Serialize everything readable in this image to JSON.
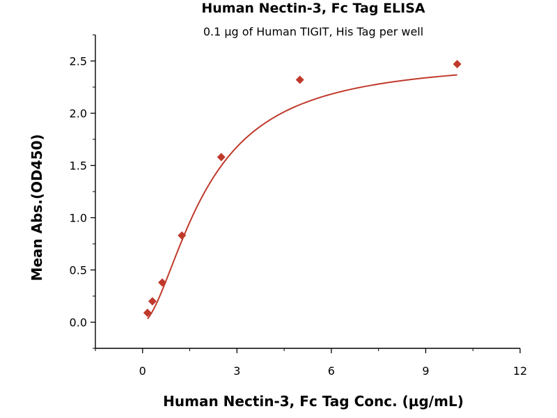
{
  "chart_data": {
    "type": "scatter",
    "title": "Human Nectin-3, Fc Tag ELISA",
    "subtitle": "0.1 µg of Human TIGIT, His Tag per well",
    "xlabel": "Human Nectin-3, Fc Tag Conc. (µg/mL)",
    "ylabel": "Mean Abs.(OD450)",
    "xlim": [
      -1.5,
      12
    ],
    "ylim": [
      -0.25,
      2.75
    ],
    "xticks": [
      0,
      3,
      6,
      9,
      12
    ],
    "yticks": [
      0.0,
      0.5,
      1.0,
      1.5,
      2.0,
      2.5
    ],
    "xtick_labels": [
      "0",
      "3",
      "6",
      "9",
      "12"
    ],
    "ytick_labels": [
      "0.0",
      "0.5",
      "1.0",
      "1.5",
      "2.0",
      "2.5"
    ],
    "grid": false,
    "legend": false,
    "marker": "diamond",
    "color": "#c0392b",
    "series": [
      {
        "x": [
          0.156,
          0.313,
          0.625,
          1.25,
          2.5,
          5.0,
          10.0
        ],
        "y": [
          0.09,
          0.2,
          0.38,
          0.83,
          1.58,
          2.32,
          2.47
        ]
      }
    ],
    "fit_curve": {
      "type": "4PL",
      "bottom": 0.0,
      "top": 2.52,
      "ec50": 2.0,
      "hill": 1.7
    }
  }
}
